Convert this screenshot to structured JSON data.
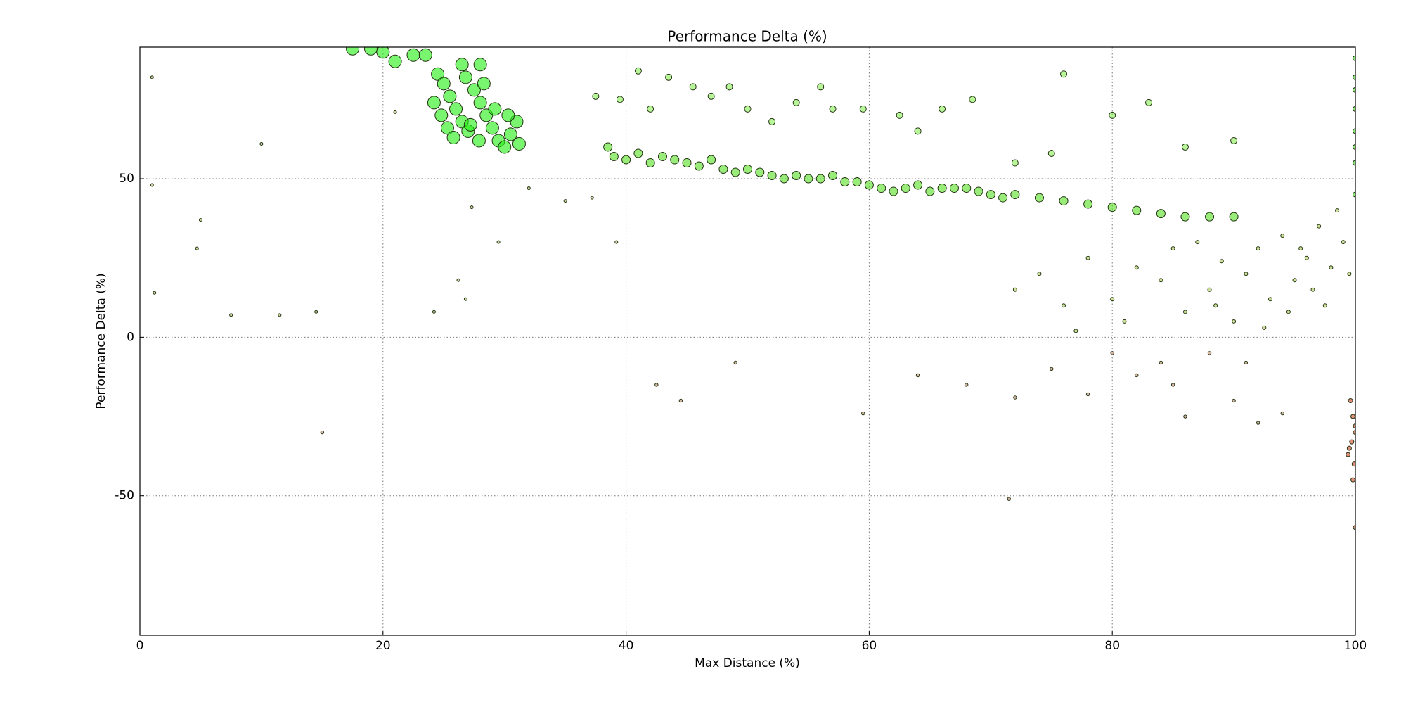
{
  "chart_data": {
    "type": "scatter",
    "title": "Performance Delta (%)",
    "x_label": "Max Distance (%)",
    "y_label": "Performance Delta (%)",
    "xlim": [
      0,
      100
    ],
    "ylim": [
      -94,
      91.5
    ],
    "xticks": [
      0,
      20,
      40,
      60,
      80,
      100
    ],
    "yticks": [
      -50,
      0,
      50
    ],
    "grid": true,
    "series": [
      {
        "color": "#22ee11",
        "size": 9,
        "x": [
          24.5,
          25,
          25.5,
          26,
          26.5,
          27,
          27.5,
          28,
          28.5,
          29,
          29.5,
          30,
          30.5,
          31,
          24.2,
          25.3,
          26.8,
          27.9,
          29.2,
          30.3,
          31.2,
          25.8,
          28.3,
          24.8,
          27.2,
          17.5,
          19,
          20,
          21,
          22.5,
          23.5,
          26.5,
          28
        ],
        "values": [
          83,
          80,
          76,
          72,
          68,
          65,
          78,
          74,
          70,
          66,
          62,
          60,
          64,
          68,
          74,
          66,
          82,
          62,
          72,
          70,
          61,
          63,
          80,
          70,
          67,
          91,
          91,
          90,
          87,
          89,
          89,
          86,
          86
        ]
      },
      {
        "color": "#55dd22",
        "size": 6,
        "x": [
          38.5,
          39,
          40,
          41,
          42,
          43,
          44,
          45,
          46,
          47,
          48,
          49,
          50,
          51,
          52,
          53,
          54,
          55,
          56,
          57,
          58,
          59,
          60,
          61,
          62,
          63,
          64,
          65,
          66,
          67,
          68,
          69,
          70,
          71,
          72,
          74,
          76,
          78,
          80,
          82,
          84,
          86,
          88,
          90
        ],
        "values": [
          60,
          57,
          56,
          58,
          55,
          57,
          56,
          55,
          54,
          56,
          53,
          52,
          53,
          52,
          51,
          50,
          51,
          50,
          50,
          51,
          49,
          49,
          48,
          47,
          46,
          47,
          48,
          46,
          47,
          47,
          47,
          46,
          45,
          44,
          45,
          44,
          43,
          42,
          41,
          40,
          39,
          38,
          38,
          38
        ]
      },
      {
        "color": "#88ee55",
        "size": 4.5,
        "x": [
          37.5,
          39.5,
          41,
          42,
          43.5,
          45.5,
          47,
          48.5,
          50,
          52,
          54,
          56,
          57,
          59.5,
          62.5,
          64,
          66,
          68.5,
          72,
          75,
          76,
          80,
          83,
          86,
          90
        ],
        "values": [
          76,
          75,
          84,
          72,
          82,
          79,
          76,
          79,
          72,
          68,
          74,
          79,
          72,
          72,
          70,
          65,
          72,
          75,
          55,
          58,
          83,
          70,
          74,
          60,
          62
        ]
      },
      {
        "color": "#aacc55",
        "size": 2.5,
        "x": [
          72,
          74,
          76,
          78,
          80,
          82,
          84,
          85,
          86,
          87,
          88,
          89,
          90,
          91,
          92,
          93,
          94,
          95,
          96,
          97,
          98,
          99,
          92.5,
          94.5,
          96.5,
          98.5,
          81,
          77,
          88.5,
          95.5,
          97.5,
          99.5
        ],
        "values": [
          15,
          20,
          10,
          25,
          12,
          22,
          18,
          28,
          8,
          30,
          15,
          24,
          5,
          20,
          28,
          12,
          32,
          18,
          25,
          35,
          22,
          30,
          3,
          8,
          15,
          40,
          5,
          2,
          10,
          28,
          10,
          20
        ]
      },
      {
        "color": "#bb8866",
        "size": 2.2,
        "x": [
          42.5,
          44.5,
          49,
          59.5,
          64,
          68,
          72,
          75,
          78,
          80,
          82,
          84,
          86,
          88,
          90,
          92,
          94,
          71.5,
          85,
          91,
          15
        ],
        "values": [
          -15,
          -20,
          -8,
          -24,
          -12,
          -15,
          -19,
          -10,
          -18,
          -5,
          -12,
          -8,
          -25,
          -5,
          -20,
          -27,
          -24,
          -51,
          -15,
          -8,
          -30
        ]
      },
      {
        "color": "#cc4422",
        "size": 3,
        "x": [
          99.6,
          99.8,
          100,
          99.5,
          99.9,
          100,
          99.7,
          99.4,
          99.8,
          100
        ],
        "values": [
          -20,
          -25,
          -30,
          -35,
          -40,
          -28,
          -33,
          -37,
          -45,
          -60
        ]
      },
      {
        "color": "#44dd22",
        "size": 3.5,
        "x": [
          100,
          100,
          100,
          100,
          100,
          100,
          100,
          100
        ],
        "values": [
          88,
          82,
          78,
          72,
          65,
          60,
          55,
          45
        ]
      },
      {
        "color": "#aabb66",
        "size": 2,
        "x": [
          1,
          1,
          1.2,
          4.7,
          5,
          7.5,
          10,
          11.5,
          14.5,
          21,
          24.2,
          26.2,
          26.8,
          27.3,
          29.5,
          32,
          35,
          37.2,
          39.2
        ],
        "values": [
          82,
          48,
          14,
          28,
          37,
          7,
          61,
          7,
          8,
          71,
          8,
          18,
          12,
          41,
          30,
          47,
          43,
          44,
          30
        ]
      }
    ]
  }
}
